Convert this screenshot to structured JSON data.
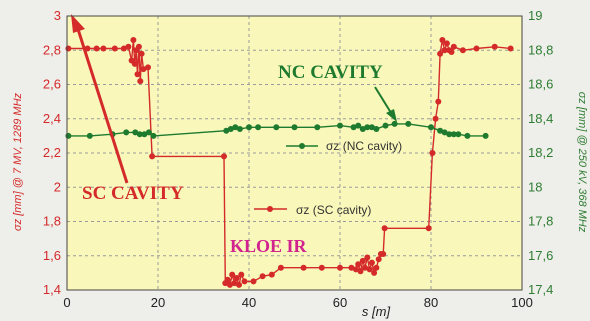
{
  "chart_data": {
    "type": "line",
    "xlabel": "s [m]",
    "ylabel_left": "σz [mm] @ 7 MV, 1289 MHz",
    "ylabel_right": "σz [mm] @ 250 kV, 368 MHz",
    "xlim": [
      0,
      100
    ],
    "ylim_left": [
      1.4,
      3.0
    ],
    "ylim_right": [
      17.4,
      19.0
    ],
    "x_ticks": [
      "0",
      "20",
      "40",
      "60",
      "80",
      "100"
    ],
    "y_left_ticks": [
      "1,4",
      "1,6",
      "1,8",
      "2",
      "2,2",
      "2,4",
      "2,6",
      "2,8",
      "3"
    ],
    "y_right_ticks": [
      "17,4",
      "17,6",
      "17,8",
      "18",
      "18,2",
      "18,4",
      "18,6",
      "18,8",
      "19"
    ],
    "grid": true,
    "series": [
      {
        "name": "σz (SC cavity)",
        "axis": "left",
        "color": "#d42a2a",
        "points": [
          [
            0.3,
            2.81
          ],
          [
            4.5,
            2.81
          ],
          [
            6.5,
            2.81
          ],
          [
            8,
            2.81
          ],
          [
            10.5,
            2.81
          ],
          [
            12.5,
            2.81
          ],
          [
            13.5,
            2.82
          ],
          [
            14.2,
            2.74
          ],
          [
            14.6,
            2.86
          ],
          [
            14.9,
            2.72
          ],
          [
            15.2,
            2.8
          ],
          [
            15.5,
            2.66
          ],
          [
            15.8,
            2.82
          ],
          [
            16.1,
            2.62
          ],
          [
            16.4,
            2.78
          ],
          [
            16.8,
            2.69
          ],
          [
            17.8,
            2.7
          ],
          [
            18.7,
            2.18
          ],
          [
            34.5,
            2.18
          ],
          [
            34.8,
            1.44
          ],
          [
            35.3,
            1.46
          ],
          [
            35.8,
            1.43
          ],
          [
            36.3,
            1.49
          ],
          [
            36.8,
            1.44
          ],
          [
            37.3,
            1.47
          ],
          [
            37.8,
            1.43
          ],
          [
            38.3,
            1.49
          ],
          [
            39,
            1.45
          ],
          [
            41,
            1.45
          ],
          [
            43,
            1.48
          ],
          [
            45,
            1.49
          ],
          [
            47,
            1.53
          ],
          [
            52,
            1.53
          ],
          [
            56,
            1.53
          ],
          [
            60,
            1.53
          ],
          [
            62.5,
            1.53
          ],
          [
            63.5,
            1.52
          ],
          [
            64,
            1.55
          ],
          [
            64.5,
            1.51
          ],
          [
            65,
            1.57
          ],
          [
            65.5,
            1.53
          ],
          [
            66,
            1.59
          ],
          [
            66.5,
            1.52
          ],
          [
            67,
            1.56
          ],
          [
            67.5,
            1.5
          ],
          [
            68,
            1.53
          ],
          [
            68.5,
            1.58
          ],
          [
            69,
            1.61
          ],
          [
            69.5,
            1.61
          ],
          [
            69.8,
            1.76
          ],
          [
            79.5,
            1.76
          ],
          [
            80.3,
            2.2
          ],
          [
            81,
            2.4
          ],
          [
            81.6,
            2.5
          ],
          [
            82,
            2.78
          ],
          [
            82.5,
            2.86
          ],
          [
            83,
            2.8
          ],
          [
            83.5,
            2.84
          ],
          [
            84,
            2.8
          ],
          [
            84.5,
            2.79
          ],
          [
            85,
            2.82
          ],
          [
            87,
            2.8
          ],
          [
            90,
            2.81
          ],
          [
            94,
            2.82
          ],
          [
            97.5,
            2.81
          ]
        ]
      },
      {
        "name": "σz (NC cavity)",
        "axis": "right",
        "color": "#1e7a2e",
        "points": [
          [
            0.3,
            18.3
          ],
          [
            5,
            18.3
          ],
          [
            10,
            18.31
          ],
          [
            13,
            18.32
          ],
          [
            15,
            18.32
          ],
          [
            16,
            18.31
          ],
          [
            17,
            18.31
          ],
          [
            18,
            18.32
          ],
          [
            19,
            18.3
          ],
          [
            35,
            18.33
          ],
          [
            36,
            18.34
          ],
          [
            37,
            18.35
          ],
          [
            38,
            18.34
          ],
          [
            40,
            18.35
          ],
          [
            42,
            18.35
          ],
          [
            46,
            18.35
          ],
          [
            50,
            18.35
          ],
          [
            55,
            18.35
          ],
          [
            60,
            18.36
          ],
          [
            63,
            18.35
          ],
          [
            64,
            18.36
          ],
          [
            65,
            18.34
          ],
          [
            66,
            18.35
          ],
          [
            67,
            18.35
          ],
          [
            68,
            18.34
          ],
          [
            70,
            18.36
          ],
          [
            72,
            18.37
          ],
          [
            75,
            18.37
          ],
          [
            80,
            18.35
          ],
          [
            82,
            18.33
          ],
          [
            83,
            18.32
          ],
          [
            84,
            18.31
          ],
          [
            85,
            18.31
          ],
          [
            86,
            18.31
          ],
          [
            88,
            18.3
          ],
          [
            92,
            18.3
          ]
        ]
      }
    ],
    "annotations": {
      "sc_cavity": "SC CAVITY",
      "nc_cavity": "NC CAVITY",
      "kloe_ir": "KLOE IR"
    },
    "legend_placement": "inside, near each series"
  },
  "style": {
    "plot_background": "#f9f8ba",
    "page_background": "#eeeeea",
    "left_axis_color": "#d42a2a",
    "right_axis_color": "#2e7d32",
    "kloe_color": "#d2228f"
  }
}
